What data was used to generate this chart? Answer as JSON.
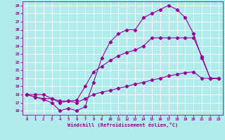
{
  "xlabel": "Windchill (Refroidissement éolien,°C)",
  "bg_color": "#b2ebeb",
  "grid_color": "#ffffff",
  "line_color": "#990099",
  "xlim": [
    -0.5,
    23.5
  ],
  "ylim": [
    15.5,
    29.5
  ],
  "xticks": [
    0,
    1,
    2,
    3,
    4,
    5,
    6,
    7,
    8,
    9,
    10,
    11,
    12,
    13,
    14,
    15,
    16,
    17,
    18,
    19,
    20,
    21,
    22,
    23
  ],
  "yticks": [
    16,
    17,
    18,
    19,
    20,
    21,
    22,
    23,
    24,
    25,
    26,
    27,
    28,
    29
  ],
  "line1_x": [
    0,
    1,
    2,
    3,
    4,
    5,
    6,
    7,
    8,
    9,
    10,
    11,
    12,
    13,
    14,
    15,
    16,
    17,
    18,
    19,
    20,
    21,
    22,
    23
  ],
  "line1_y": [
    18,
    17.7,
    17.5,
    17.5,
    17.2,
    17.2,
    17.0,
    17.5,
    18.0,
    18.3,
    18.5,
    18.8,
    19.0,
    19.3,
    19.5,
    19.8,
    20.0,
    20.3,
    20.5,
    20.7,
    20.8,
    20.0,
    20.0,
    20.0
  ],
  "line2_x": [
    0,
    1,
    2,
    3,
    4,
    5,
    6,
    7,
    8,
    9,
    10,
    11,
    12,
    13,
    14,
    15,
    16,
    17,
    18,
    19,
    20,
    21,
    22,
    23
  ],
  "line2_y": [
    18.0,
    18.0,
    18.0,
    17.5,
    17.0,
    17.2,
    17.3,
    19.0,
    20.8,
    21.5,
    22.2,
    22.8,
    23.2,
    23.5,
    24.0,
    25.0,
    25.0,
    25.0,
    25.0,
    25.0,
    25.0,
    22.7,
    20.0,
    20.0
  ],
  "line3_x": [
    0,
    1,
    2,
    3,
    4,
    5,
    6,
    7,
    8,
    9,
    10,
    11,
    12,
    13,
    14,
    15,
    16,
    17,
    18,
    19,
    20,
    21,
    22,
    23
  ],
  "line3_y": [
    18.0,
    17.7,
    17.4,
    17.0,
    16.0,
    16.3,
    16.0,
    16.5,
    19.5,
    22.5,
    24.5,
    25.5,
    26.0,
    26.0,
    27.5,
    28.0,
    28.5,
    29.0,
    28.5,
    27.5,
    25.5,
    22.5,
    20.0,
    20.0
  ]
}
